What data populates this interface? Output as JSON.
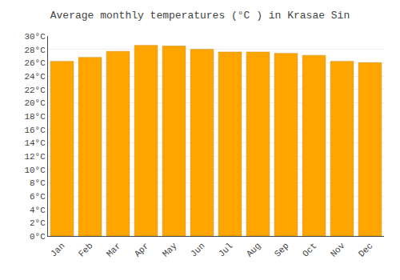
{
  "chart_data": {
    "type": "bar",
    "title": "Average monthly temperatures (°C ) in Krasae Sin",
    "categories": [
      "Jan",
      "Feb",
      "Mar",
      "Apr",
      "May",
      "Jun",
      "Jul",
      "Aug",
      "Sep",
      "Oct",
      "Nov",
      "Dec"
    ],
    "values": [
      26.2,
      26.8,
      27.7,
      28.6,
      28.5,
      28.0,
      27.6,
      27.6,
      27.4,
      27.1,
      26.2,
      26.0
    ],
    "color": "#FFA500",
    "ylim": [
      0,
      30
    ],
    "yticks": [
      {
        "value": 0,
        "label": "0°C"
      },
      {
        "value": 2,
        "label": "2°C"
      },
      {
        "value": 4,
        "label": "4°C"
      },
      {
        "value": 6,
        "label": "6°C"
      },
      {
        "value": 8,
        "label": "8°C"
      },
      {
        "value": 10,
        "label": "10°C"
      },
      {
        "value": 12,
        "label": "12°C"
      },
      {
        "value": 14,
        "label": "14°C"
      },
      {
        "value": 16,
        "label": "16°C"
      },
      {
        "value": 18,
        "label": "18°C"
      },
      {
        "value": 20,
        "label": "20°C"
      },
      {
        "value": 22,
        "label": "22°C"
      },
      {
        "value": 24,
        "label": "24°C"
      },
      {
        "value": 26,
        "label": "26°C"
      },
      {
        "value": 28,
        "label": "28°C"
      },
      {
        "value": 30,
        "label": "30°C"
      }
    ],
    "grid": true
  }
}
